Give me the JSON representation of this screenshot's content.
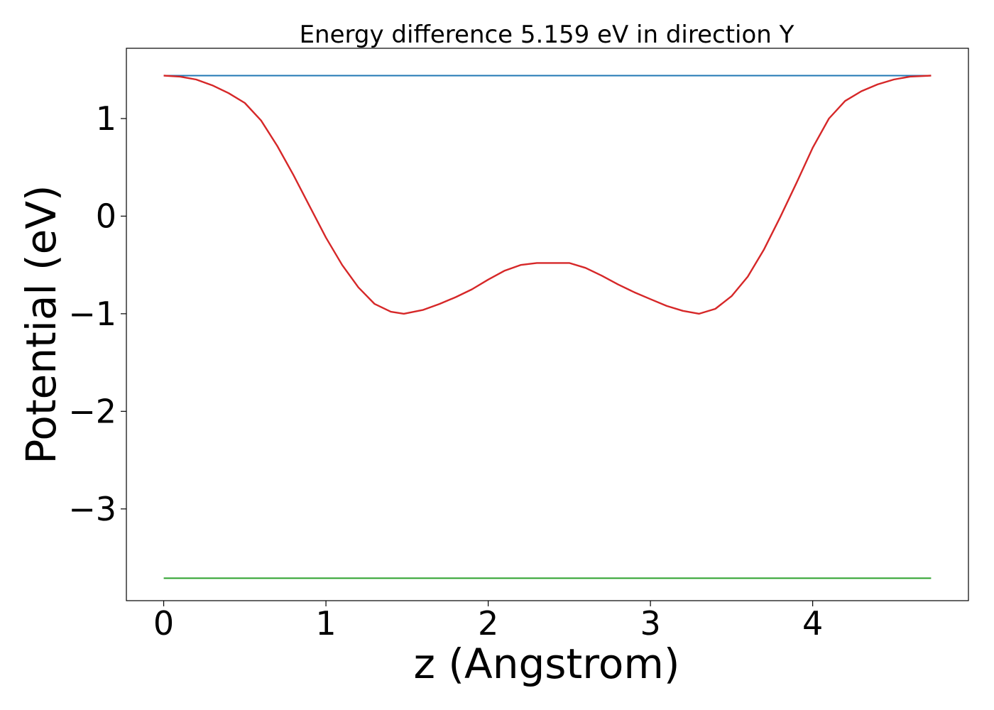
{
  "chart_data": {
    "type": "line",
    "title": "Energy difference 5.159 eV in direction Y",
    "xlabel": "z (Angstrom)",
    "ylabel": "Potential (eV)",
    "xlim": [
      -0.23,
      4.96
    ],
    "ylim": [
      -3.94,
      1.72
    ],
    "xticks": [
      0,
      1,
      2,
      3,
      4
    ],
    "xtick_labels": [
      "0",
      "1",
      "2",
      "3",
      "4"
    ],
    "yticks": [
      1,
      0,
      -1,
      -2,
      -3
    ],
    "ytick_labels": [
      "1",
      "0",
      "−1",
      "−2",
      "−3"
    ],
    "grid": false,
    "legend": "none",
    "series": [
      {
        "color": "#1f77b4",
        "x": [
          0,
          4.73
        ],
        "y": [
          1.44,
          1.44
        ]
      },
      {
        "color": "#2ca02c",
        "x": [
          0,
          4.73
        ],
        "y": [
          -3.71,
          -3.71
        ]
      },
      {
        "color": "#d62728",
        "x": [
          0,
          0.1,
          0.2,
          0.3,
          0.4,
          0.5,
          0.6,
          0.7,
          0.8,
          0.9,
          1.0,
          1.1,
          1.2,
          1.3,
          1.4,
          1.48,
          1.6,
          1.7,
          1.8,
          1.9,
          2.0,
          2.1,
          2.2,
          2.3,
          2.4,
          2.5,
          2.6,
          2.7,
          2.8,
          2.9,
          3.0,
          3.1,
          3.2,
          3.3,
          3.4,
          3.5,
          3.6,
          3.7,
          3.8,
          3.9,
          4.0,
          4.1,
          4.2,
          4.3,
          4.4,
          4.5,
          4.6,
          4.73
        ],
        "y": [
          1.44,
          1.43,
          1.4,
          1.34,
          1.26,
          1.16,
          0.98,
          0.72,
          0.42,
          0.1,
          -0.22,
          -0.5,
          -0.73,
          -0.9,
          -0.98,
          -1.0,
          -0.96,
          -0.9,
          -0.83,
          -0.75,
          -0.65,
          -0.56,
          -0.5,
          -0.48,
          -0.48,
          -0.48,
          -0.53,
          -0.61,
          -0.7,
          -0.78,
          -0.85,
          -0.92,
          -0.97,
          -1.0,
          -0.95,
          -0.82,
          -0.62,
          -0.34,
          -0.01,
          0.34,
          0.7,
          1.0,
          1.18,
          1.28,
          1.35,
          1.4,
          1.43,
          1.44
        ]
      }
    ]
  }
}
